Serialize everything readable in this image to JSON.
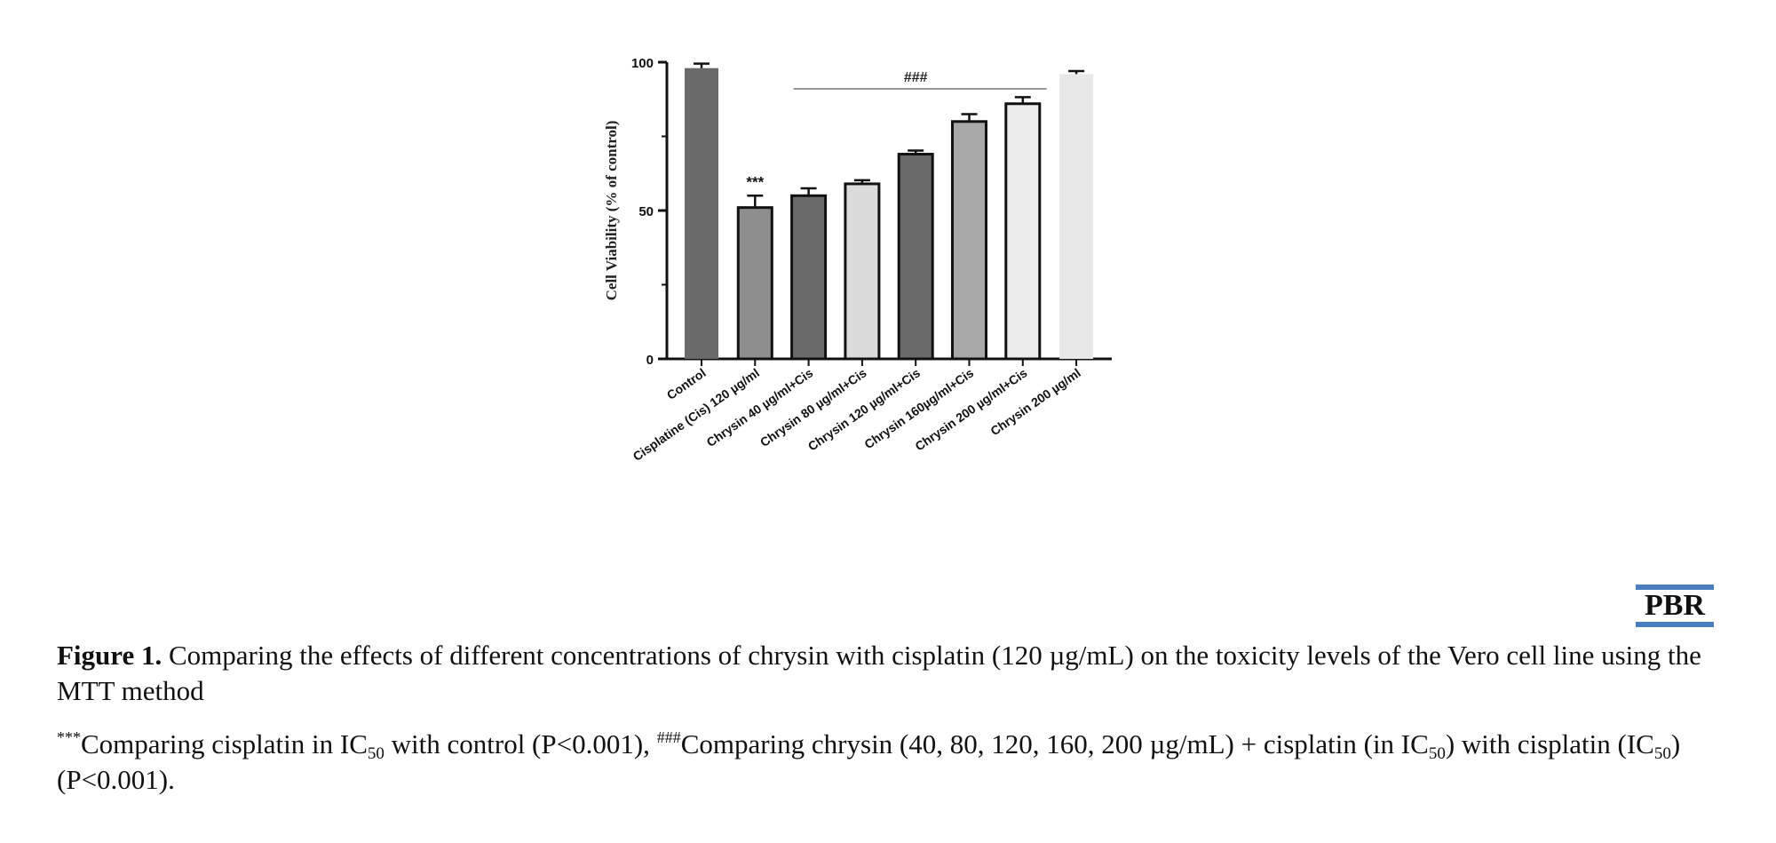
{
  "chart_data": {
    "type": "bar",
    "ylabel": "Cell Viability (% of control)",
    "ylim": [
      0,
      100
    ],
    "yticks": [
      "0",
      "50",
      "100"
    ],
    "categories": [
      "Control",
      "Cisplatine (Cis) 120 µg/ml",
      "Chrysin 40 µg/ml+Cis",
      "Chrysin 80 µg/ml+Cis",
      "Chrysin 120 µg/ml+Cis",
      "Chrysin 160µg/ml+Cis",
      "Chrysin 200 µg/ml+Cis",
      "Chrysin 200 µg/ml"
    ],
    "values": [
      98,
      51,
      55,
      59,
      69,
      80,
      86,
      96
    ],
    "errors": [
      1.5,
      4,
      2.5,
      1.2,
      1.2,
      2.5,
      2.2,
      1
    ],
    "colors": [
      "#6a6a6a",
      "#8e8e8e",
      "#6a6a6a",
      "#dadada",
      "#6a6a6a",
      "#a8a8a8",
      "#ececec",
      "#e8e8e8"
    ],
    "outlined": [
      false,
      true,
      true,
      true,
      true,
      true,
      true,
      false
    ],
    "annotations": [
      {
        "text": "***",
        "category": "Cisplatine (Cis) 120 µg/ml"
      },
      {
        "text": "###",
        "from": "Chrysin 40 µg/ml+Cis",
        "to": "Chrysin 200 µg/ml+Cis",
        "y": 91
      }
    ],
    "grid": false
  },
  "logo": {
    "text": "PBR"
  },
  "caption": {
    "label": "Figure 1.",
    "text": " Comparing the effects of different concentrations of chrysin with cisplatin (120 µg/mL) on the toxicity levels of the Vero cell line using the MTT method",
    "note_stars": "***",
    "note_1": "Comparing cisplatin in IC",
    "note_sub_1": "50",
    "note_2": " with control (P<0.001), ",
    "note_hashes": "###",
    "note_3": "Comparing chrysin (40, 80, 120, 160, 200 µg/mL) + cisplatin (in IC",
    "note_sub_2": "50",
    "note_4": ") with cisplatin (IC",
    "note_sub_3": "50",
    "note_5": ") (P<0.001)."
  }
}
